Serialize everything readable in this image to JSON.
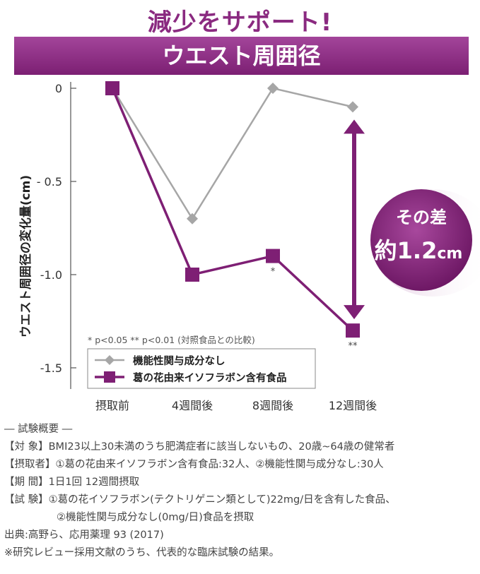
{
  "header": {
    "headline": "減少をサポート!",
    "banner": "ウエスト周囲径"
  },
  "chart_data": {
    "type": "line",
    "title": "ウエスト周囲径",
    "ylabel": "ウエスト周囲径の変化量(cm)",
    "xlabel": "",
    "categories": [
      "摂取前",
      "4週間後",
      "8週間後",
      "12週間後"
    ],
    "ylim": [
      -1.5,
      0
    ],
    "yticks": [
      0,
      -0.5,
      -1.0,
      -1.5
    ],
    "ytick_labels": [
      "0",
      "- 0.5",
      "-1.0",
      "-1.5"
    ],
    "series": [
      {
        "name": "機能性関与成分なし",
        "values": [
          0,
          -0.7,
          0,
          -0.1
        ],
        "color": "#a6a6a6",
        "marker": "diamond"
      },
      {
        "name": "葛の花由来イソフラボン含有食品",
        "values": [
          0,
          -1.0,
          -0.9,
          -1.3
        ],
        "color": "#7e1f74",
        "marker": "square"
      }
    ],
    "significance_labels": [
      "",
      "",
      "*",
      "**"
    ],
    "significance_note": "* p<0.05 ** p<0.01 (対照食品との比較)",
    "difference_badge": {
      "line1": "その差",
      "line2_number": "約1.2",
      "line2_unit": "cm"
    },
    "grid": false,
    "legend": "bottom-left",
    "colors": {
      "accent": "#8a2a80",
      "control": "#a6a6a6",
      "treatment": "#7e1f74"
    }
  },
  "notes": {
    "heading": "― 試験概要 ―",
    "subject": "【対 象】BMI23以上30未満のうち肥満症者に該当しないもの、20歳~64歳の健常者",
    "participants": "【摂取者】①葛の花由来イソフラボン含有食品:32人、②機能性関与成分なし:30人",
    "period": "【期 間】1日1回 12週間摂取",
    "trial_line1": "【試 験】①葛の花イソフラボン(テクトリゲニン類として)22mg/日を含有した食品、",
    "trial_line2": "②機能性関与成分なし(0mg/日)食品を摂取",
    "source": "出典:高野ら、応用薬理 93 (2017)",
    "remark": "※研究レビュー採用文献のうち、代表的な臨床試験の結果。"
  }
}
